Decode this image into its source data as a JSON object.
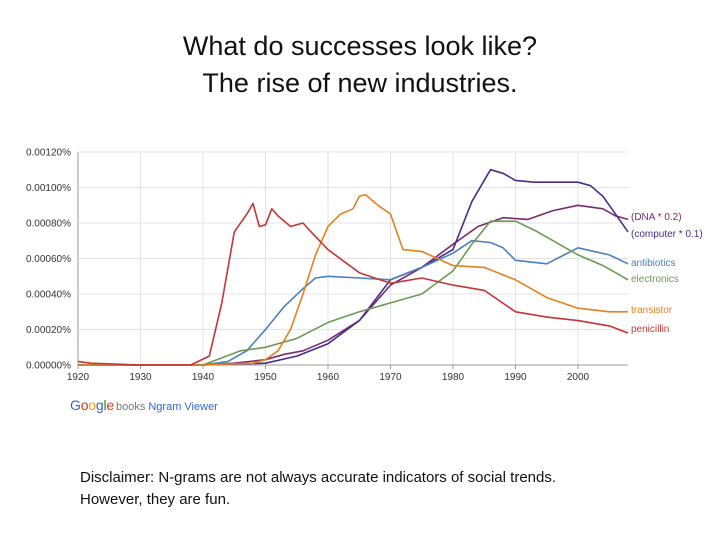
{
  "slide": {
    "title_line1": "What do successes look like?",
    "title_line2": "The rise of new industries.",
    "disclaimer_line1": "Disclaimer: N-grams are not always accurate indicators of social trends.",
    "disclaimer_line2": "However, they are fun."
  },
  "logo": {
    "letters": [
      "G",
      "o",
      "o",
      "g",
      "l",
      "e"
    ],
    "letter_colors": [
      "#3366cc",
      "#dc3912",
      "#ff9900",
      "#3366cc",
      "#109618",
      "#dc3912"
    ],
    "books": "books",
    "viewer": "Ngram Viewer"
  },
  "chart_data": {
    "type": "line",
    "title": "",
    "xlabel": "",
    "ylabel": "",
    "xlim": [
      1920,
      2008
    ],
    "ylim": [
      0,
      0.0012
    ],
    "grid": true,
    "legend": "right, labels at line ends",
    "y_tick_labels": [
      "0.00000%",
      "0.00020%",
      "0.00040%",
      "0.00060%",
      "0.00080%",
      "0.00100%",
      "0.00120%"
    ],
    "x_tick_labels": [
      "1920",
      "1930",
      "1940",
      "1950",
      "1960",
      "1970",
      "1980",
      "1990",
      "2000"
    ],
    "series": [
      {
        "name": "(DNA * 0.2)",
        "color": "#7a2a6e",
        "x": [
          1920,
          1930,
          1940,
          1945,
          1950,
          1953,
          1956,
          1960,
          1965,
          1970,
          1975,
          1980,
          1984,
          1988,
          1992,
          1996,
          2000,
          2004,
          2006,
          2008
        ],
        "y": [
          0,
          0,
          0,
          1e-05,
          3e-05,
          6e-05,
          8e-05,
          0.00014,
          0.00025,
          0.00045,
          0.00055,
          0.00068,
          0.00078,
          0.00083,
          0.00082,
          0.00087,
          0.0009,
          0.00088,
          0.00084,
          0.00082
        ]
      },
      {
        "name": "(computer * 0.1)",
        "color": "#4b2c8c",
        "x": [
          1920,
          1940,
          1950,
          1955,
          1960,
          1965,
          1970,
          1975,
          1980,
          1983,
          1986,
          1988,
          1990,
          1993,
          1996,
          2000,
          2002,
          2004,
          2006,
          2008
        ],
        "y": [
          0,
          0,
          1e-05,
          5e-05,
          0.00012,
          0.00025,
          0.00048,
          0.00055,
          0.00065,
          0.00092,
          0.0011,
          0.00108,
          0.00104,
          0.00103,
          0.00103,
          0.00103,
          0.00101,
          0.00095,
          0.00085,
          0.00075
        ]
      },
      {
        "name": "antibiotics",
        "color": "#4a7fc1",
        "x": [
          1920,
          1940,
          1944,
          1947,
          1950,
          1953,
          1956,
          1958,
          1960,
          1965,
          1970,
          1975,
          1980,
          1983,
          1986,
          1988,
          1990,
          1995,
          2000,
          2005,
          2008
        ],
        "y": [
          0,
          0,
          2e-05,
          8e-05,
          0.0002,
          0.00033,
          0.00043,
          0.00049,
          0.0005,
          0.00049,
          0.00048,
          0.00055,
          0.00063,
          0.0007,
          0.00069,
          0.00066,
          0.00059,
          0.00057,
          0.00066,
          0.00062,
          0.00057
        ]
      },
      {
        "name": "electronics",
        "color": "#6b9b52",
        "x": [
          1920,
          1940,
          1943,
          1946,
          1950,
          1955,
          1960,
          1965,
          1970,
          1975,
          1980,
          1983,
          1986,
          1990,
          1993,
          1996,
          2000,
          2004,
          2008
        ],
        "y": [
          0,
          0,
          4e-05,
          8e-05,
          0.0001,
          0.00015,
          0.00024,
          0.0003,
          0.00035,
          0.0004,
          0.00053,
          0.00068,
          0.00081,
          0.00081,
          0.00076,
          0.0007,
          0.00062,
          0.00056,
          0.00048
        ]
      },
      {
        "name": "transistor",
        "color": "#e2821f",
        "x": [
          1920,
          1940,
          1948,
          1950,
          1952,
          1954,
          1956,
          1958,
          1960,
          1962,
          1964,
          1965,
          1966,
          1968,
          1970,
          1972,
          1975,
          1980,
          1985,
          1990,
          1995,
          2000,
          2005,
          2008
        ],
        "y": [
          0,
          0,
          1e-05,
          3e-05,
          8e-05,
          0.0002,
          0.0004,
          0.00062,
          0.00078,
          0.00085,
          0.00088,
          0.00095,
          0.00096,
          0.0009,
          0.00085,
          0.00065,
          0.00064,
          0.00056,
          0.00055,
          0.00048,
          0.00038,
          0.00032,
          0.0003,
          0.0003
        ]
      },
      {
        "name": "penicillin",
        "color": "#c63535",
        "x": [
          1920,
          1922,
          1930,
          1938,
          1941,
          1943,
          1945,
          1947,
          1948,
          1949,
          1950,
          1951,
          1952,
          1954,
          1956,
          1957,
          1960,
          1965,
          1970,
          1975,
          1980,
          1985,
          1990,
          1995,
          2000,
          2005,
          2008
        ],
        "y": [
          2e-05,
          1e-05,
          0,
          0,
          5e-05,
          0.00035,
          0.00075,
          0.00085,
          0.00091,
          0.00078,
          0.00079,
          0.00088,
          0.00084,
          0.00078,
          0.0008,
          0.00076,
          0.00065,
          0.00052,
          0.00046,
          0.00049,
          0.00045,
          0.00042,
          0.0003,
          0.00027,
          0.00025,
          0.00022,
          0.00018
        ]
      }
    ]
  }
}
